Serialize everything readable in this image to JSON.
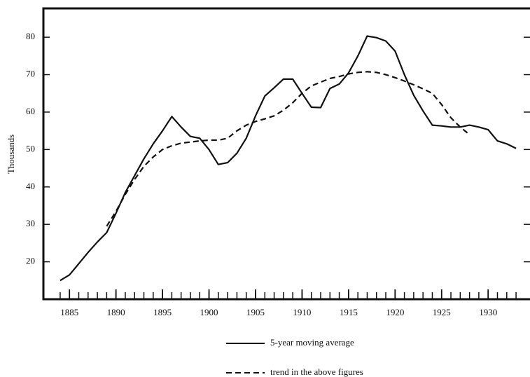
{
  "chart_data": {
    "type": "line",
    "ylabel": "Thousands",
    "x": [
      1884,
      1885,
      1886,
      1887,
      1888,
      1889,
      1890,
      1891,
      1892,
      1893,
      1894,
      1895,
      1896,
      1897,
      1898,
      1899,
      1900,
      1901,
      1902,
      1903,
      1904,
      1905,
      1906,
      1907,
      1908,
      1909,
      1910,
      1911,
      1912,
      1913,
      1914,
      1915,
      1916,
      1917,
      1918,
      1919,
      1920,
      1921,
      1922,
      1923,
      1924,
      1925,
      1926,
      1927,
      1928,
      1929,
      1930,
      1931,
      1932,
      1933
    ],
    "series": [
      {
        "name": "5-year moving average",
        "color": "#111111",
        "dash": "solid",
        "values": [
          15,
          16.5,
          19.5,
          22.5,
          25.3,
          27.8,
          33,
          38.5,
          43,
          47.5,
          51.5,
          55,
          58.8,
          56,
          53.5,
          53,
          50,
          46,
          46.5,
          49,
          53,
          59,
          64.3,
          66.5,
          68.8,
          68.8,
          65,
          61.3,
          61.2,
          66.3,
          67.5,
          70.5,
          75,
          80.3,
          79.9,
          79,
          76.3,
          70,
          64.5,
          60.3,
          56.5,
          56.3,
          56,
          56,
          56.5,
          56,
          55.3,
          52.3,
          51.5,
          50.3
        ]
      },
      {
        "name": "trend in the above figures",
        "color": "#111111",
        "dash": "dashed",
        "values": [
          null,
          null,
          null,
          null,
          null,
          29.5,
          33.5,
          38,
          42,
          45.5,
          48,
          50,
          51,
          51.7,
          52,
          52.3,
          52.5,
          52.5,
          53,
          55,
          56.5,
          57.5,
          58.2,
          59,
          60.5,
          62.5,
          65,
          67,
          68,
          69,
          69.5,
          70.2,
          70.6,
          70.8,
          70.6,
          70,
          69.2,
          68.3,
          67.3,
          66.2,
          65,
          62,
          58.5,
          56,
          54,
          null,
          null,
          null,
          null,
          null
        ]
      }
    ],
    "xlim": [
      1882.2,
      1934.5
    ],
    "ylim": [
      10,
      87.7
    ],
    "xticks": [
      1885,
      1890,
      1895,
      1900,
      1905,
      1910,
      1915,
      1920,
      1925,
      1930
    ],
    "yticks": [
      20,
      30,
      40,
      50,
      60,
      70,
      80
    ]
  }
}
